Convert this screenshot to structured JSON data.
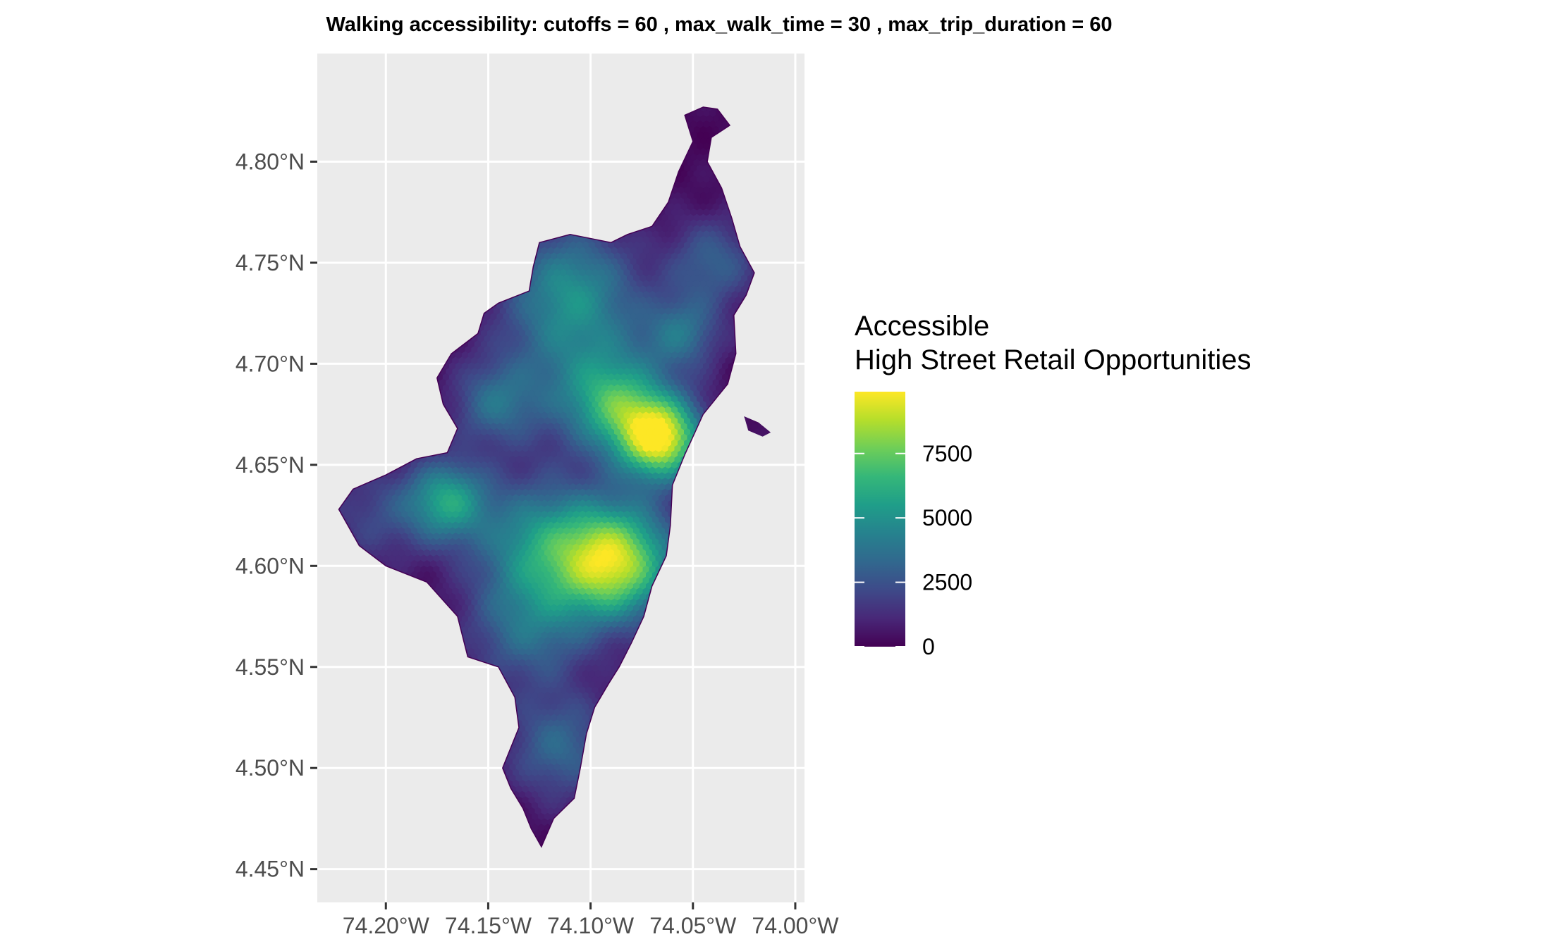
{
  "title": "Walking accessibility: cutoffs =  60 ,  max_walk_time =  30 , max_trip_duration =  60",
  "map": {
    "panel_background": "#ebebeb",
    "grid_color": "#ffffff",
    "lon_range": [
      -74.2335,
      -73.9955
    ],
    "lat_range": [
      4.4335,
      4.8535
    ],
    "x_ticks": [
      {
        "value": -74.2,
        "label": "74.20°W"
      },
      {
        "value": -74.15,
        "label": "74.15°W"
      },
      {
        "value": -74.1,
        "label": "74.10°W"
      },
      {
        "value": -74.05,
        "label": "74.05°W"
      },
      {
        "value": -74.0,
        "label": "74.00°W"
      }
    ],
    "y_ticks": [
      {
        "value": 4.8,
        "label": "4.80°N"
      },
      {
        "value": 4.75,
        "label": "4.75°N"
      },
      {
        "value": 4.7,
        "label": "4.70°N"
      },
      {
        "value": 4.65,
        "label": "4.65°N"
      },
      {
        "value": 4.6,
        "label": "4.60°N"
      },
      {
        "value": 4.55,
        "label": "4.55°N"
      },
      {
        "value": 4.5,
        "label": "4.50°N"
      },
      {
        "value": 4.45,
        "label": "4.45°N"
      }
    ],
    "region_boundary": [
      [
        -74.045,
        4.827
      ],
      [
        -74.038,
        4.826
      ],
      [
        -74.032,
        4.818
      ],
      [
        -74.041,
        4.812
      ],
      [
        -74.043,
        4.8
      ],
      [
        -74.036,
        4.787
      ],
      [
        -74.031,
        4.772
      ],
      [
        -74.027,
        4.758
      ],
      [
        -74.02,
        4.745
      ],
      [
        -74.024,
        4.734
      ],
      [
        -74.03,
        4.724
      ],
      [
        -74.029,
        4.705
      ],
      [
        -74.033,
        4.69
      ],
      [
        -74.045,
        4.675
      ],
      [
        -74.054,
        4.655
      ],
      [
        -74.06,
        4.64
      ],
      [
        -74.061,
        4.62
      ],
      [
        -74.063,
        4.605
      ],
      [
        -74.07,
        4.59
      ],
      [
        -74.074,
        4.575
      ],
      [
        -74.08,
        4.562
      ],
      [
        -74.086,
        4.55
      ],
      [
        -74.091,
        4.542
      ],
      [
        -74.098,
        4.53
      ],
      [
        -74.102,
        4.517
      ],
      [
        -74.105,
        4.5
      ],
      [
        -74.108,
        4.485
      ],
      [
        -74.118,
        4.475
      ],
      [
        -74.124,
        4.461
      ],
      [
        -74.129,
        4.47
      ],
      [
        -74.133,
        4.48
      ],
      [
        -74.139,
        4.49
      ],
      [
        -74.143,
        4.5
      ],
      [
        -74.135,
        4.52
      ],
      [
        -74.137,
        4.535
      ],
      [
        -74.145,
        4.55
      ],
      [
        -74.16,
        4.555
      ],
      [
        -74.165,
        4.575
      ],
      [
        -74.18,
        4.592
      ],
      [
        -74.2,
        4.6
      ],
      [
        -74.213,
        4.61
      ],
      [
        -74.223,
        4.628
      ],
      [
        -74.216,
        4.638
      ],
      [
        -74.2,
        4.645
      ],
      [
        -74.185,
        4.653
      ],
      [
        -74.17,
        4.656
      ],
      [
        -74.165,
        4.668
      ],
      [
        -74.172,
        4.68
      ],
      [
        -74.175,
        4.693
      ],
      [
        -74.168,
        4.705
      ],
      [
        -74.155,
        4.715
      ],
      [
        -74.152,
        4.725
      ],
      [
        -74.145,
        4.73
      ],
      [
        -74.13,
        4.736
      ],
      [
        -74.128,
        4.748
      ],
      [
        -74.125,
        4.76
      ],
      [
        -74.11,
        4.764
      ],
      [
        -74.09,
        4.76
      ],
      [
        -74.082,
        4.764
      ],
      [
        -74.07,
        4.768
      ],
      [
        -74.062,
        4.78
      ],
      [
        -74.057,
        4.795
      ],
      [
        -74.05,
        4.81
      ],
      [
        -74.054,
        4.823
      ]
    ],
    "islands": [
      [
        [
          -74.025,
          4.674
        ],
        [
          -74.018,
          4.671
        ],
        [
          -74.012,
          4.666
        ],
        [
          -74.016,
          4.664
        ],
        [
          -74.023,
          4.667
        ]
      ]
    ],
    "hotspots": [
      {
        "lon": -74.066,
        "lat": 4.663,
        "value": 9400,
        "radius": 0.02
      },
      {
        "lon": -74.088,
        "lat": 4.602,
        "value": 8700,
        "radius": 0.028
      },
      {
        "lon": -74.17,
        "lat": 4.632,
        "value": 5200,
        "radius": 0.02
      },
      {
        "lon": -74.126,
        "lat": 4.612,
        "value": 4200,
        "radius": 0.03
      },
      {
        "lon": -74.088,
        "lat": 4.68,
        "value": 4200,
        "radius": 0.022
      },
      {
        "lon": -74.11,
        "lat": 4.74,
        "value": 3500,
        "radius": 0.03
      },
      {
        "lon": -74.055,
        "lat": 4.715,
        "value": 3000,
        "radius": 0.018
      },
      {
        "lon": -74.04,
        "lat": 4.75,
        "value": 2700,
        "radius": 0.022
      },
      {
        "lon": -74.105,
        "lat": 4.7,
        "value": 3000,
        "radius": 0.04
      },
      {
        "lon": -74.115,
        "lat": 4.51,
        "value": 3000,
        "radius": 0.026
      },
      {
        "lon": -74.147,
        "lat": 4.68,
        "value": 2800,
        "radius": 0.02
      },
      {
        "lon": -74.13,
        "lat": 4.57,
        "value": 3200,
        "radius": 0.03
      },
      {
        "lon": -74.205,
        "lat": 4.625,
        "value": 1800,
        "radius": 0.025
      }
    ]
  },
  "legend": {
    "title_line1": "Accessible",
    "title_line2": "High Street Retail Opportunities",
    "min": 0,
    "max": 9900,
    "labels": [
      {
        "value": 0,
        "label": "0"
      },
      {
        "value": 2500,
        "label": "2500"
      },
      {
        "value": 5000,
        "label": "5000"
      },
      {
        "value": 7500,
        "label": "7500"
      }
    ],
    "colors": [
      "#440154",
      "#482878",
      "#3e4a89",
      "#31688e",
      "#26828e",
      "#1f9e89",
      "#35b779",
      "#6ece58",
      "#b5de2b",
      "#fde725"
    ]
  }
}
